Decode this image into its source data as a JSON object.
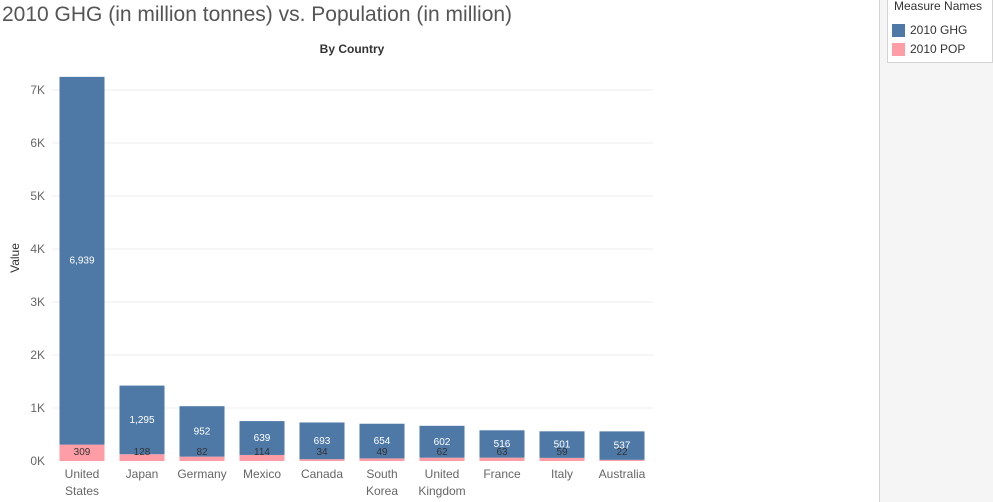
{
  "title": "2010 GHG (in million tonnes) vs. Population (in million)",
  "legend": {
    "title": "Measure Names",
    "items": [
      {
        "label": "2010 GHG",
        "color": "#4e79a7"
      },
      {
        "label": "2010 POP",
        "color": "#ff9da7"
      }
    ]
  },
  "chart_data": {
    "type": "bar",
    "stacked": true,
    "subtitle": "By Country",
    "ylabel": "Value",
    "xlabel": "",
    "ylim": [
      0,
      7000
    ],
    "yticks": [
      0,
      1000,
      2000,
      3000,
      4000,
      5000,
      6000,
      7000
    ],
    "ytick_labels": [
      "0K",
      "1K",
      "2K",
      "3K",
      "4K",
      "5K",
      "6K",
      "7K"
    ],
    "grid": true,
    "legend_position": "top-right",
    "categories": [
      [
        "United",
        "States"
      ],
      [
        "Japan"
      ],
      [
        "Germany"
      ],
      [
        "Mexico"
      ],
      [
        "Canada"
      ],
      [
        "South",
        "Korea"
      ],
      [
        "United",
        "Kingdom"
      ],
      [
        "France"
      ],
      [
        "Italy"
      ],
      [
        "Australia"
      ]
    ],
    "series": [
      {
        "name": "2010 POP",
        "color": "#ff9da7",
        "values": [
          309,
          128,
          82,
          114,
          34,
          49,
          62,
          63,
          59,
          22
        ],
        "labels": [
          "309",
          "128",
          "82",
          "114",
          "34",
          "49",
          "62",
          "63",
          "59",
          "22"
        ]
      },
      {
        "name": "2010 GHG",
        "color": "#4e79a7",
        "values": [
          6939,
          1295,
          952,
          639,
          693,
          654,
          602,
          516,
          501,
          537
        ],
        "labels": [
          "6,939",
          "1,295",
          "952",
          "639",
          "693",
          "654",
          "602",
          "516",
          "501",
          "537"
        ]
      }
    ]
  }
}
